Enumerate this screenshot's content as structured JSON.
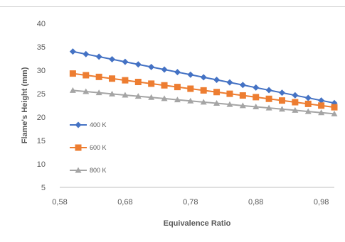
{
  "chart_data": {
    "type": "line",
    "title": "",
    "xlabel": "Equivalence Ratio",
    "ylabel": "Flame's Height (mm)",
    "xlim": [
      0.58,
      1.0
    ],
    "ylim": [
      5,
      40
    ],
    "x_ticks": [
      "0,58",
      "0,68",
      "0,78",
      "0,88",
      "0,98"
    ],
    "y_ticks": [
      "5",
      "10",
      "15",
      "20",
      "25",
      "30",
      "35",
      "40"
    ],
    "x": [
      0.6,
      0.62,
      0.64,
      0.66,
      0.68,
      0.7,
      0.72,
      0.74,
      0.76,
      0.78,
      0.8,
      0.82,
      0.84,
      0.86,
      0.88,
      0.9,
      0.92,
      0.94,
      0.96,
      0.98,
      1.0
    ],
    "series": [
      {
        "name": "400 K",
        "color": "#4472c4",
        "marker": "diamond",
        "values": [
          34.0,
          33.45,
          32.9,
          32.35,
          31.8,
          31.25,
          30.7,
          30.15,
          29.6,
          29.05,
          28.5,
          27.95,
          27.4,
          26.85,
          26.3,
          25.75,
          25.2,
          24.65,
          24.1,
          23.55,
          23.0
        ]
      },
      {
        "name": "600 K",
        "color": "#ed7d31",
        "marker": "square",
        "values": [
          29.3,
          28.94,
          28.58,
          28.22,
          27.86,
          27.5,
          27.14,
          26.78,
          26.42,
          26.06,
          25.7,
          25.34,
          24.98,
          24.62,
          24.26,
          23.9,
          23.54,
          23.18,
          22.82,
          22.46,
          22.1
        ]
      },
      {
        "name": "800 K",
        "color": "#a5a5a5",
        "marker": "triangle",
        "values": [
          25.7,
          25.45,
          25.2,
          24.95,
          24.7,
          24.45,
          24.2,
          23.95,
          23.7,
          23.45,
          23.2,
          22.95,
          22.7,
          22.45,
          22.2,
          21.95,
          21.7,
          21.45,
          21.2,
          20.95,
          20.7
        ]
      }
    ],
    "grid": false,
    "legend_position": "inside-left"
  }
}
